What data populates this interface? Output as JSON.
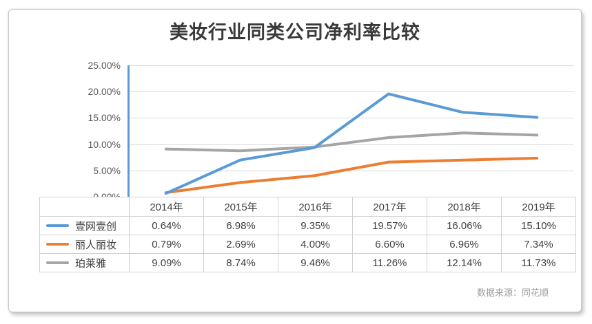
{
  "card": {
    "title": "美妆行业同类公司净利率比较",
    "source": "数据来源：同花顺"
  },
  "chart_data": {
    "type": "line",
    "title": "美妆行业同类公司净利率比较",
    "categories": [
      "2014年",
      "2015年",
      "2016年",
      "2017年",
      "2018年",
      "2019年"
    ],
    "series": [
      {
        "name": "壹网壹创",
        "color": "#5b9bd5",
        "values": [
          0.64,
          6.98,
          9.35,
          19.57,
          16.06,
          15.1
        ]
      },
      {
        "name": "丽人丽妆",
        "color": "#ed7d31",
        "values": [
          0.79,
          2.69,
          4.0,
          6.6,
          6.96,
          7.34
        ]
      },
      {
        "name": "珀莱雅",
        "color": "#a5a5a5",
        "values": [
          9.09,
          8.74,
          9.46,
          11.26,
          12.14,
          11.73
        ]
      }
    ],
    "ylabel": "",
    "xlabel": "",
    "ylim": [
      0,
      25
    ],
    "grid": true,
    "legend_position": "table-left-column",
    "y_axis": {
      "ticks": [
        "25.00%",
        "20.00%",
        "15.00%",
        "10.00%",
        "5.00%",
        "0.00%"
      ]
    }
  },
  "table": {
    "header": [
      "2014年",
      "2015年",
      "2016年",
      "2017年",
      "2018年",
      "2019年"
    ],
    "rows": [
      {
        "label": "壹网壹创",
        "values": [
          "0.64%",
          "6.98%",
          "9.35%",
          "19.57%",
          "16.06%",
          "15.10%"
        ]
      },
      {
        "label": "丽人丽妆",
        "values": [
          "0.79%",
          "2.69%",
          "4.00%",
          "6.60%",
          "6.96%",
          "7.34%"
        ]
      },
      {
        "label": "珀莱雅",
        "values": [
          "9.09%",
          "8.74%",
          "9.46%",
          "11.26%",
          "12.14%",
          "11.73%"
        ]
      }
    ]
  },
  "colors": {
    "series_blue": "#5b9bd5",
    "series_orange": "#ed7d31",
    "series_gray": "#a5a5a5",
    "gridline": "#d9d9d9",
    "table_border": "#d0d0d0"
  }
}
